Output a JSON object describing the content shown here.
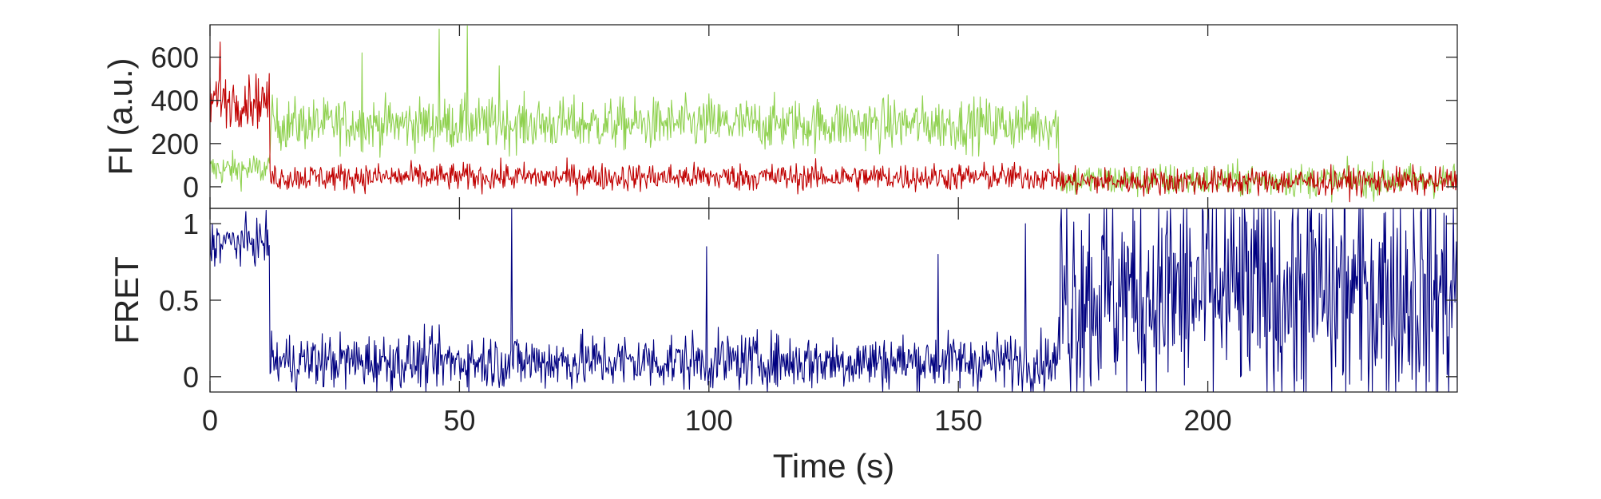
{
  "chart_data": [
    {
      "type": "line",
      "panel": "top",
      "ylabel": "FI (a.u.)",
      "xlim": [
        0,
        250
      ],
      "ylim": [
        -100,
        750
      ],
      "yticks": [
        0,
        200,
        400,
        600
      ],
      "ytick_labels": [
        "0",
        "200",
        "400",
        "600"
      ],
      "x_tick_labels_shown": false,
      "grid": false,
      "series": [
        {
          "color": "#8fd14f",
          "segments": [
            {
              "x_start": 0,
              "x_end": 12,
              "mean": 80,
              "noise": 55
            },
            {
              "x_start": 12,
              "x_end": 170,
              "mean": 290,
              "noise": 85
            },
            {
              "x_start": 170,
              "x_end": 250,
              "mean": 30,
              "noise": 55
            }
          ],
          "spikes": [
            [
              46,
              730
            ],
            [
              51.5,
              745
            ],
            [
              30.5,
              620
            ],
            [
              58,
              560
            ],
            [
              100,
              430
            ]
          ]
        },
        {
          "color": "#c00000",
          "segments": [
            {
              "x_start": 0,
              "x_end": 12,
              "mean": 400,
              "noise": 85
            },
            {
              "x_start": 12,
              "x_end": 170,
              "mean": 45,
              "noise": 45
            },
            {
              "x_start": 170,
              "x_end": 250,
              "mean": 25,
              "noise": 45
            }
          ],
          "spikes": [
            [
              2,
              670
            ]
          ]
        }
      ]
    },
    {
      "type": "line",
      "panel": "bottom",
      "ylabel": "FRET",
      "xlabel": "Time (s)",
      "xlim": [
        0,
        250
      ],
      "ylim": [
        -0.1,
        1.1
      ],
      "xticks": [
        0,
        50,
        100,
        150,
        200
      ],
      "xtick_labels": [
        "0",
        "50",
        "100",
        "150",
        "200"
      ],
      "yticks": [
        0,
        0.5,
        1
      ],
      "ytick_labels": [
        "0",
        "0.5",
        "1"
      ],
      "grid": false,
      "series": [
        {
          "color": "#000080",
          "segments": [
            {
              "x_start": 0,
              "x_end": 12,
              "mean": 0.88,
              "noise": 0.1
            },
            {
              "x_start": 12,
              "x_end": 170,
              "mean": 0.1,
              "noise": 0.13
            },
            {
              "x_start": 170,
              "x_end": 250,
              "mean": 0.55,
              "noise": 0.55
            }
          ],
          "spikes": [
            [
              60.5,
              1.1
            ],
            [
              99.5,
              0.85
            ],
            [
              146,
              0.8
            ],
            [
              163.5,
              1.0
            ]
          ]
        }
      ]
    }
  ]
}
